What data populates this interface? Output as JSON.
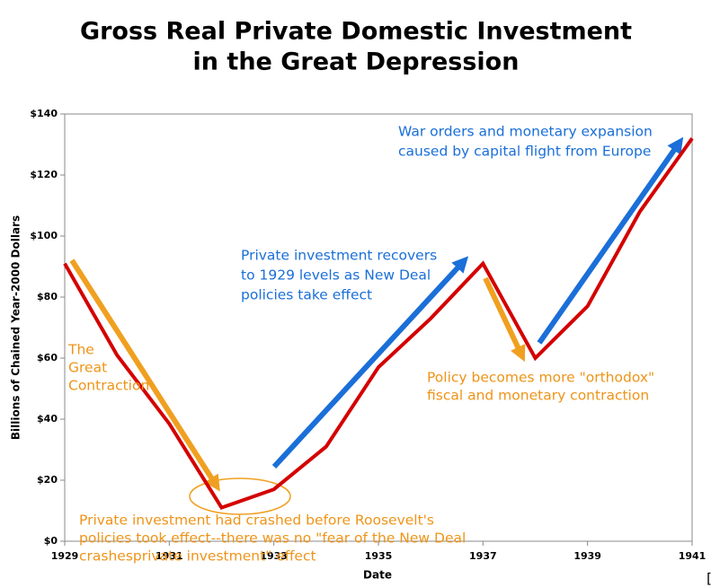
{
  "chart_data": {
    "type": "line",
    "title": [
      "Gross Real Private Domestic Investment",
      "in the Great Depression"
    ],
    "x_label": "Date",
    "y_label": "Billions of Chained Year-2000 Dollars",
    "x": [
      1929,
      1930,
      1931,
      1932,
      1933,
      1934,
      1935,
      1936,
      1937,
      1938,
      1939,
      1940,
      1941
    ],
    "series": [
      {
        "color": "#d40000",
        "values": [
          91,
          61,
          38.5,
          11,
          17,
          31,
          57,
          73,
          91,
          60,
          77,
          108,
          132
        ]
      }
    ],
    "xlim": [
      1929,
      1941
    ],
    "xticks": [
      1929,
      1931,
      1933,
      1935,
      1937,
      1939,
      1941
    ],
    "ylim": [
      0,
      140
    ],
    "yticks": [
      {
        "value": 0,
        "label": "$0"
      },
      {
        "value": 20,
        "label": "$20"
      },
      {
        "value": 40,
        "label": "$40"
      },
      {
        "value": 60,
        "label": "$60"
      },
      {
        "value": 80,
        "label": "$80"
      },
      {
        "value": 100,
        "label": "$100"
      },
      {
        "value": 120,
        "label": "$120"
      },
      {
        "value": 140,
        "label": "$140"
      }
    ],
    "grid": false,
    "annotations": [
      {
        "color": "#ee9418",
        "lines": [
          "The",
          "Great",
          "Contraction"
        ]
      },
      {
        "color": "#1a6fd8",
        "lines": [
          "Private investment recovers",
          "to 1929 levels as New Deal",
          "policies take effect"
        ]
      },
      {
        "color": "#1a6fd8",
        "lines": [
          "War orders and monetary expansion",
          "caused by capital flight from Europe"
        ]
      },
      {
        "color": "#ee9418",
        "lines": [
          "Policy becomes more \"orthodox\"",
          "fiscal and monetary contraction"
        ]
      },
      {
        "color": "#ee9418",
        "lines": [
          "Private investment had crashed before Roosevelt's",
          "policies took effect--there was no \"fear of the New Deal",
          "crashesprivate investment\" effect"
        ]
      },
      {
        "color": "#000000",
        "lines": [
          "["
        ]
      }
    ]
  }
}
